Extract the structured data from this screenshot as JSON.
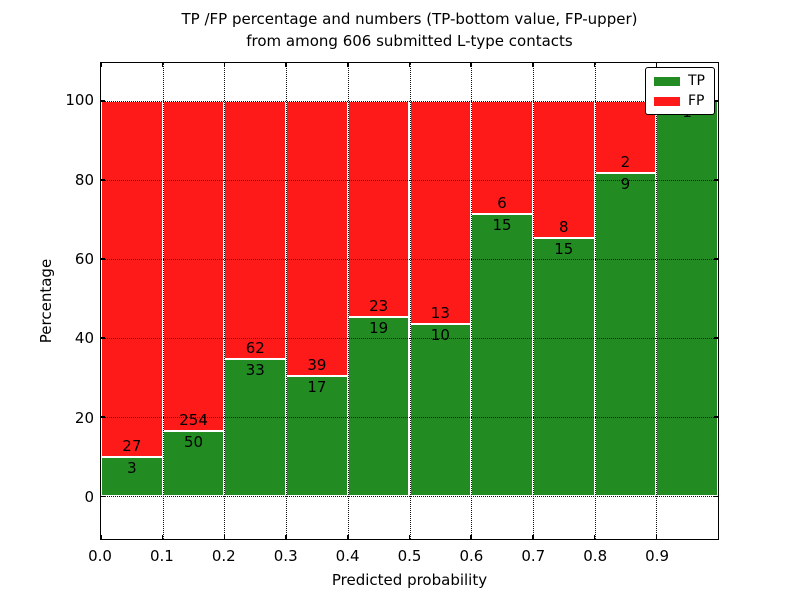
{
  "title": {
    "line1": "TP /FP percentage and numbers (TP-bottom value, FP-upper)",
    "line2": "from among 606 submitted L-type contacts"
  },
  "axes": {
    "xlabel": "Predicted probability",
    "ylabel": "Percentage"
  },
  "chart_data": {
    "type": "bar",
    "stacked": true,
    "title": "TP /FP percentage and numbers (TP-bottom value, FP-upper) from among 606 submitted L-type contacts",
    "xlabel": "Predicted probability",
    "ylabel": "Percentage",
    "total_submitted_contacts": 606,
    "annotation_scheme": "TP count below segment boundary, FP count above segment boundary; FP=0 not labeled",
    "bins": [
      "0.0-0.1",
      "0.1-0.2",
      "0.2-0.3",
      "0.3-0.4",
      "0.4-0.5",
      "0.5-0.6",
      "0.6-0.7",
      "0.7-0.8",
      "0.8-0.9",
      "0.9-1.0"
    ],
    "x_ticks": [
      "0.0",
      "0.1",
      "0.2",
      "0.3",
      "0.4",
      "0.5",
      "0.6",
      "0.7",
      "0.8",
      "0.9"
    ],
    "y_ticks": [
      0,
      20,
      40,
      60,
      80,
      100
    ],
    "xlim": [
      0,
      1
    ],
    "ylim": [
      -10.8,
      109.6
    ],
    "grid": true,
    "grid_style": "dotted-black-over-bars",
    "legend_position": "upper right",
    "bar_edge_color": "#ffffff",
    "series": [
      {
        "name": "TP",
        "color": "#228b22",
        "counts": [
          3,
          50,
          33,
          17,
          19,
          10,
          15,
          15,
          9,
          1
        ]
      },
      {
        "name": "FP",
        "color": "#ff1a1a",
        "counts": [
          27,
          254,
          62,
          39,
          23,
          13,
          6,
          8,
          2,
          0
        ]
      }
    ],
    "tp_percent_of_bin": [
      10.0,
      16.4,
      34.7,
      30.4,
      45.2,
      43.5,
      71.4,
      65.2,
      81.8,
      100.0
    ]
  }
}
